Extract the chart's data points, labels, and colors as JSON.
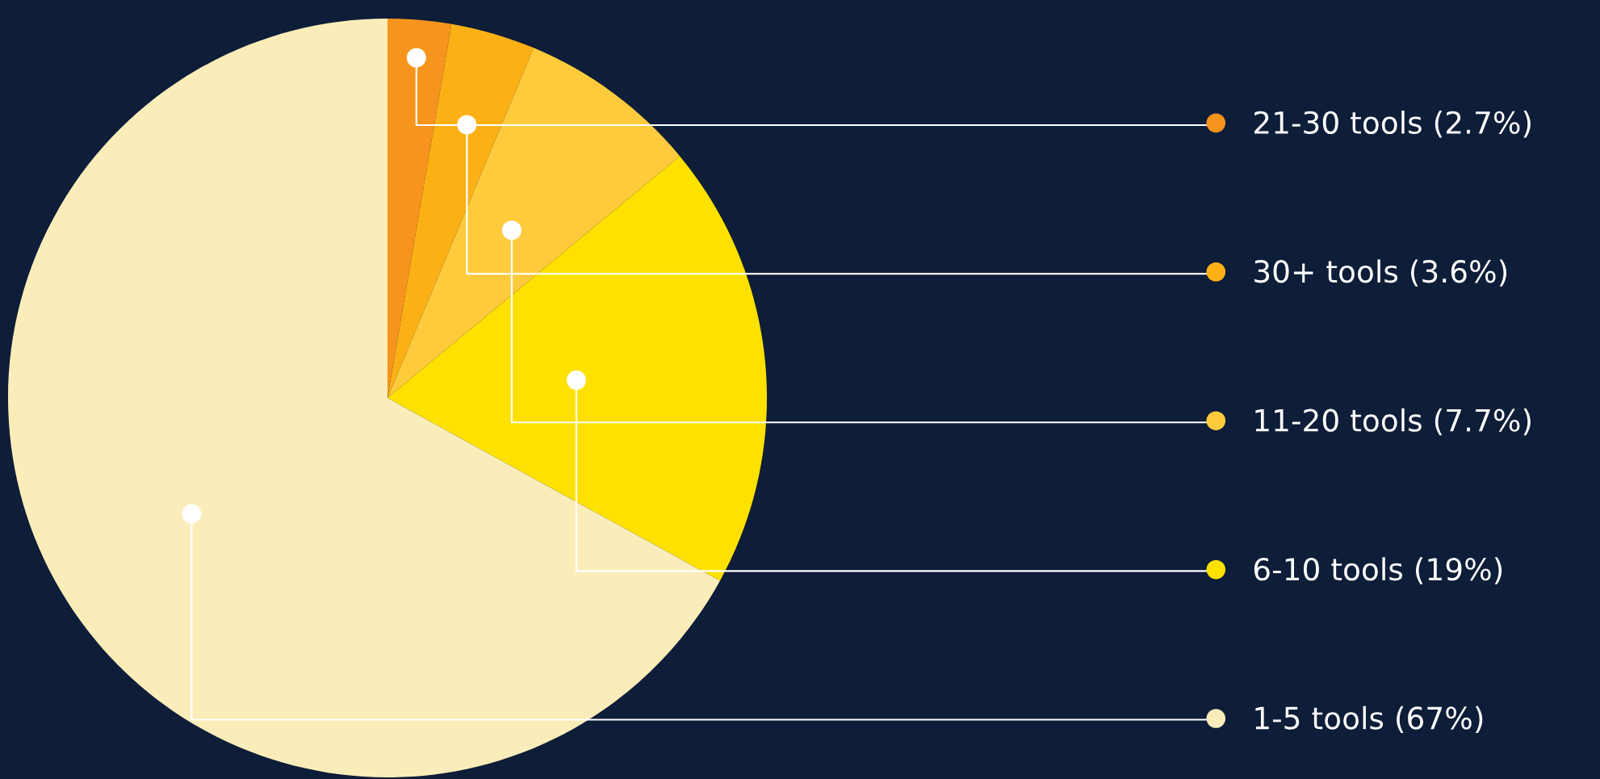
{
  "chart_data": {
    "type": "pie",
    "categories": [
      "21-30 tools (2.7%)",
      "30+ tools (3.6%)",
      "11-20 tools (7.7%)",
      "6-10 tools (19%)",
      "1-5 tools (67%)"
    ],
    "values": [
      2.7,
      3.6,
      7.7,
      19,
      67
    ],
    "colors": [
      "#f7941d",
      "#fbb116",
      "#ffcb3d",
      "#ffe100",
      "#fbedba"
    ],
    "legend": "right"
  }
}
